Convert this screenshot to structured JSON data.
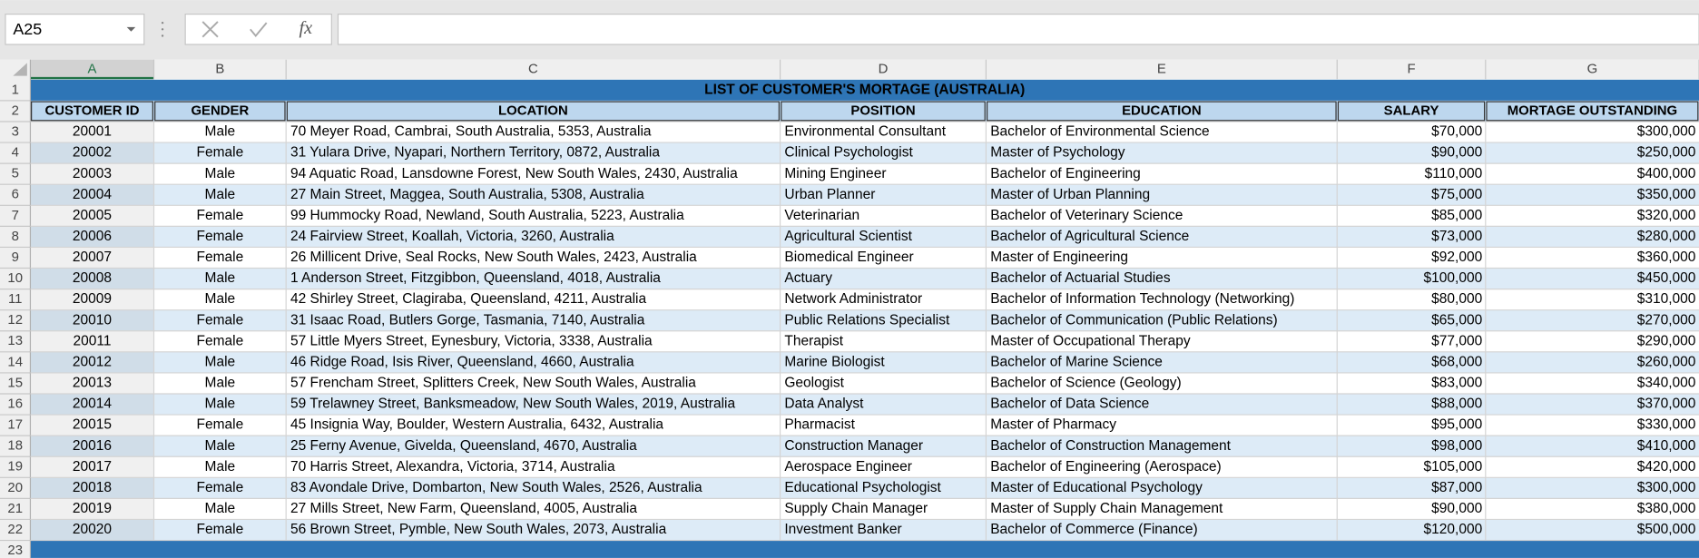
{
  "name_box": "A25",
  "formula_bar": {
    "fx": "fx"
  },
  "column_headers": [
    "A",
    "B",
    "C",
    "D",
    "E",
    "F",
    "G"
  ],
  "row_numbers": [
    1,
    2,
    3,
    4,
    5,
    6,
    7,
    8,
    9,
    10,
    11,
    12,
    13,
    14,
    15,
    16,
    17,
    18,
    19,
    20,
    21,
    22,
    23
  ],
  "table": {
    "title": "LIST OF CUSTOMER'S MORTAGE (AUSTRALIA)",
    "headers": [
      "CUSTOMER ID",
      "GENDER",
      "LOCATION",
      "POSITION",
      "EDUCATION",
      "SALARY",
      "MORTAGE OUTSTANDING"
    ],
    "rows": [
      [
        20001,
        "Male",
        "70 Meyer Road, Cambrai, South Australia, 5353, Australia",
        "Environmental Consultant",
        "Bachelor of Environmental Science",
        "$70,000",
        "$300,000"
      ],
      [
        20002,
        "Female",
        "31 Yulara Drive, Nyapari, Northern Territory, 0872, Australia",
        "Clinical Psychologist",
        "Master of Psychology",
        "$90,000",
        "$250,000"
      ],
      [
        20003,
        "Male",
        "94 Aquatic Road, Lansdowne Forest, New South Wales, 2430, Australia",
        "Mining Engineer",
        "Bachelor of Engineering",
        "$110,000",
        "$400,000"
      ],
      [
        20004,
        "Male",
        "27 Main Street, Maggea, South Australia, 5308, Australia",
        "Urban Planner",
        "Master of Urban Planning",
        "$75,000",
        "$350,000"
      ],
      [
        20005,
        "Female",
        "99 Hummocky Road, Newland, South Australia, 5223, Australia",
        "Veterinarian",
        "Bachelor of Veterinary Science",
        "$85,000",
        "$320,000"
      ],
      [
        20006,
        "Female",
        "24 Fairview Street, Koallah, Victoria, 3260, Australia",
        "Agricultural Scientist",
        "Bachelor of Agricultural Science",
        "$73,000",
        "$280,000"
      ],
      [
        20007,
        "Female",
        "26 Millicent Drive, Seal Rocks, New South Wales, 2423, Australia",
        "Biomedical Engineer",
        "Master of Engineering",
        "$92,000",
        "$360,000"
      ],
      [
        20008,
        "Male",
        "1 Anderson Street, Fitzgibbon, Queensland, 4018, Australia",
        "Actuary",
        "Bachelor of Actuarial Studies",
        "$100,000",
        "$450,000"
      ],
      [
        20009,
        "Male",
        "42 Shirley Street, Clagiraba, Queensland, 4211, Australia",
        "Network Administrator",
        "Bachelor of Information Technology (Networking)",
        "$80,000",
        "$310,000"
      ],
      [
        20010,
        "Female",
        "31 Isaac Road, Butlers Gorge, Tasmania, 7140, Australia",
        "Public Relations Specialist",
        "Bachelor of Communication (Public Relations)",
        "$65,000",
        "$270,000"
      ],
      [
        20011,
        "Female",
        "57 Little Myers Street, Eynesbury, Victoria, 3338, Australia",
        "Therapist",
        "Master of Occupational Therapy",
        "$77,000",
        "$290,000"
      ],
      [
        20012,
        "Male",
        "46 Ridge Road, Isis River, Queensland, 4660, Australia",
        "Marine Biologist",
        "Bachelor of Marine Science",
        "$68,000",
        "$260,000"
      ],
      [
        20013,
        "Male",
        "57 Frencham Street, Splitters Creek, New South Wales, Australia",
        "Geologist",
        "Bachelor of Science (Geology)",
        "$83,000",
        "$340,000"
      ],
      [
        20014,
        "Male",
        "59 Trelawney Street, Banksmeadow, New South Wales, 2019, Australia",
        "Data Analyst",
        "Bachelor of Data Science",
        "$88,000",
        "$370,000"
      ],
      [
        20015,
        "Female",
        "45 Insignia Way, Boulder, Western Australia, 6432, Australia",
        "Pharmacist",
        "Master of Pharmacy",
        "$95,000",
        "$330,000"
      ],
      [
        20016,
        "Male",
        "25 Ferny Avenue, Givelda, Queensland, 4670, Australia",
        "Construction Manager",
        "Bachelor of Construction Management",
        "$98,000",
        "$410,000"
      ],
      [
        20017,
        "Male",
        "70 Harris Street, Alexandra, Victoria, 3714, Australia",
        "Aerospace Engineer",
        "Bachelor of Engineering (Aerospace)",
        "$105,000",
        "$420,000"
      ],
      [
        20018,
        "Female",
        "83 Avondale Drive, Dombarton, New South Wales, 2526, Australia",
        "Educational Psychologist",
        "Master of Educational Psychology",
        "$87,000",
        "$300,000"
      ],
      [
        20019,
        "Male",
        "27 Mills Street, New Farm, Queensland, 4005, Australia",
        "Supply Chain Manager",
        "Master of Supply Chain Management",
        "$90,000",
        "$380,000"
      ],
      [
        20020,
        "Female",
        "56 Brown Street, Pymble, New South Wales, 2073, Australia",
        "Investment Banker",
        "Bachelor of Commerce (Finance)",
        "$120,000",
        "$500,000"
      ]
    ]
  }
}
